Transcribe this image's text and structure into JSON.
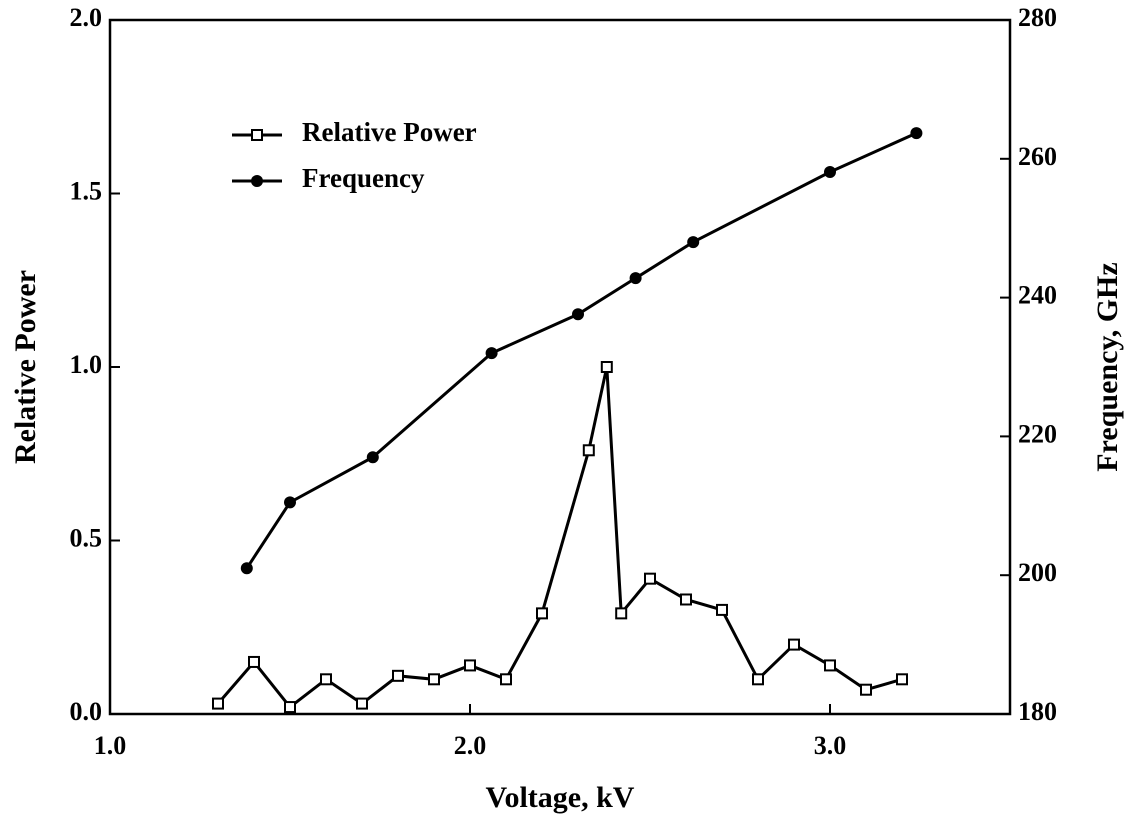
{
  "chart_data": {
    "type": "line",
    "x_label": "Voltage, kV",
    "y_label": "Relative Power",
    "y2_label": "Frequency, GHz",
    "xlim": [
      1.0,
      3.5
    ],
    "xticks": [
      {
        "value": 1.0,
        "label": "1.0"
      },
      {
        "value": 2.0,
        "label": "2.0"
      },
      {
        "value": 3.0,
        "label": "3.0"
      }
    ],
    "ylim": [
      0,
      2
    ],
    "yticks": [
      {
        "value": 0,
        "label": "0.0"
      },
      {
        "value": 0.5,
        "label": "0.5"
      },
      {
        "value": 1.0,
        "label": "1.0"
      },
      {
        "value": 1.5,
        "label": "1.5"
      },
      {
        "value": 2.0,
        "label": "2.0"
      }
    ],
    "y2lim": [
      180,
      280
    ],
    "y2ticks": [
      180,
      200,
      220,
      240,
      260,
      280
    ],
    "legend": "upper left",
    "series": [
      {
        "name": "Relative Power",
        "color": "#000000",
        "marker": "open-square",
        "x": [
          1.3,
          1.4,
          1.5,
          1.6,
          1.7,
          1.8,
          1.9,
          2.0,
          2.1,
          2.2,
          2.33,
          2.38,
          2.42,
          2.5,
          2.6,
          2.7,
          2.8,
          2.9,
          3.0,
          3.1,
          3.2
        ],
        "values": [
          0.03,
          0.15,
          0.02,
          0.1,
          0.03,
          0.11,
          0.1,
          0.14,
          0.1,
          0.29,
          0.76,
          1.0,
          0.29,
          0.39,
          0.33,
          0.3,
          0.1,
          0.2,
          0.14,
          0.07,
          0.1
        ]
      },
      {
        "name": "Frequency",
        "color": "#000000",
        "marker": "filled-circle",
        "axis": "y2",
        "x": [
          1.38,
          1.5,
          1.73,
          2.06,
          2.3,
          2.46,
          2.62,
          3.0,
          3.24
        ],
        "values": [
          201,
          210.5,
          217,
          232,
          237.6,
          242.8,
          248,
          258.1,
          263.7
        ]
      }
    ]
  }
}
